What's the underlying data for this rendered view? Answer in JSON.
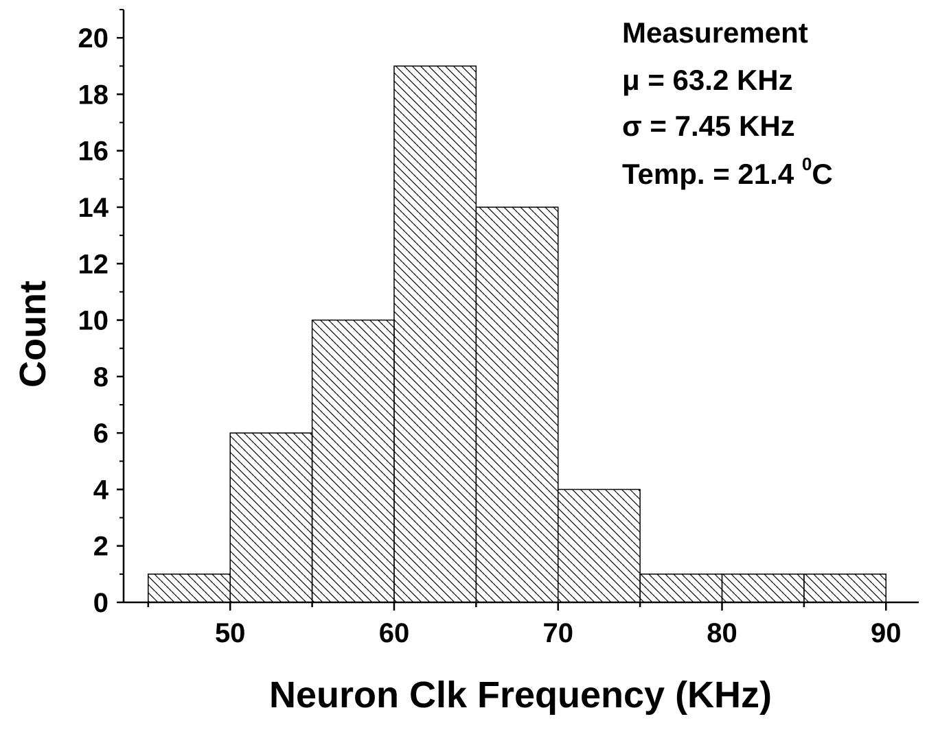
{
  "chart_data": {
    "type": "bar",
    "subtype": "histogram",
    "bins": [
      {
        "start": 45,
        "end": 50,
        "count": 1
      },
      {
        "start": 50,
        "end": 55,
        "count": 6
      },
      {
        "start": 55,
        "end": 60,
        "count": 10
      },
      {
        "start": 60,
        "end": 65,
        "count": 19
      },
      {
        "start": 65,
        "end": 70,
        "count": 14
      },
      {
        "start": 70,
        "end": 75,
        "count": 4
      },
      {
        "start": 75,
        "end": 80,
        "count": 1
      },
      {
        "start": 80,
        "end": 85,
        "count": 1
      },
      {
        "start": 85,
        "end": 90,
        "count": 1
      }
    ],
    "xlabel": "Neuron Clk Frequency (KHz)",
    "ylabel": "Count",
    "xlim": [
      43.5,
      92
    ],
    "ylim": [
      0,
      21
    ],
    "x_ticks": [
      50,
      60,
      70,
      80,
      90
    ],
    "y_ticks": [
      0,
      2,
      4,
      6,
      8,
      10,
      12,
      14,
      16,
      18,
      20
    ],
    "bar_fill": "diagonal-hatch",
    "bar_color": "#000000",
    "grid": false,
    "annotation": {
      "line1": "Measurement",
      "line2": "μ = 63.2 KHz",
      "line3": "σ = 7.45 KHz",
      "line4_text": "Temp. = 21.4 ",
      "line4_sup": "0",
      "line4_unit": "C"
    }
  }
}
